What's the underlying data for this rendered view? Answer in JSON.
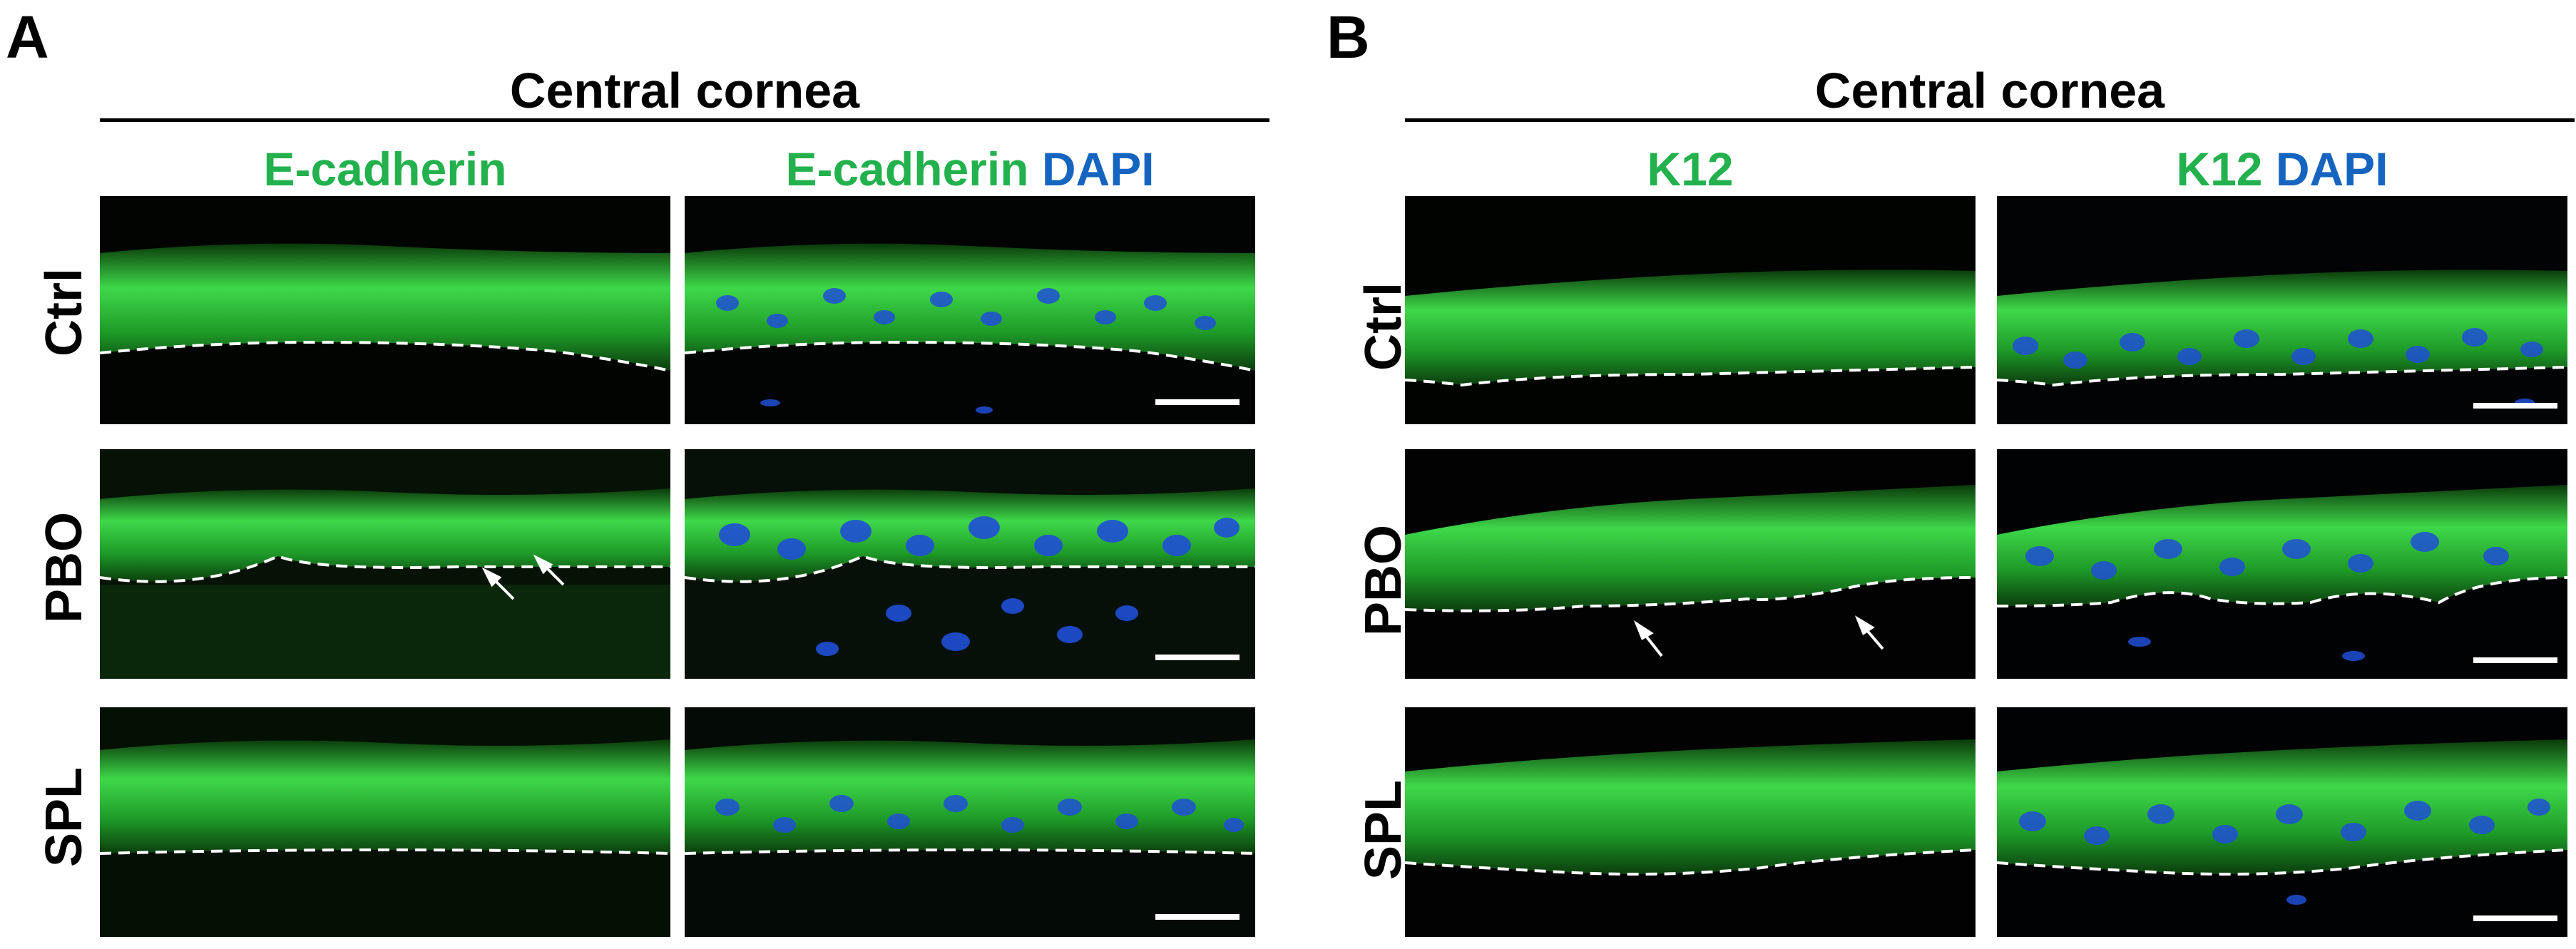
{
  "panel_a": {
    "letter": "A",
    "title": "Central cornea",
    "col1": "E-cadherin",
    "col2_green": "E-cadherin",
    "col2_blue": "DAPI",
    "rows": [
      "Ctrl",
      "PBO",
      "SPL"
    ]
  },
  "panel_b": {
    "letter": "B",
    "title": "Central cornea",
    "col1": "K12",
    "col2_green": "K12",
    "col2_blue": "DAPI",
    "rows": [
      "Ctrl",
      "PBO",
      "SPL"
    ]
  },
  "colors": {
    "green_label": "#22b14c",
    "blue_label": "#1565c0",
    "epithelium": "#2fc83a",
    "nuclei": "#1f4fd6"
  }
}
